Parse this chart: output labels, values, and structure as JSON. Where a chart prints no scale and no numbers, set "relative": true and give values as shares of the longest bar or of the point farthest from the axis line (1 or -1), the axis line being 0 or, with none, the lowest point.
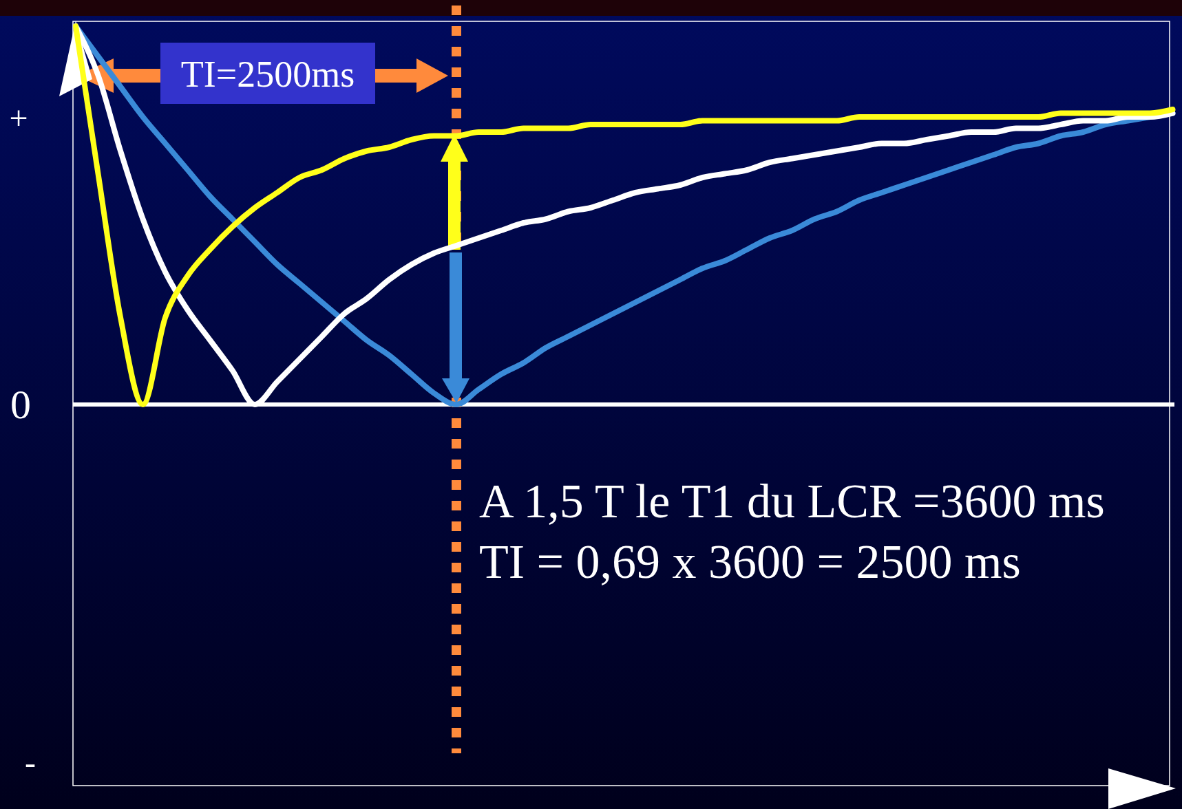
{
  "chart_data": {
    "type": "line",
    "relative": true,
    "legend": false,
    "marker": "none",
    "line_style": "solid",
    "categories": [
      null,
      null,
      null,
      null,
      null,
      null,
      null,
      null,
      null,
      null,
      null,
      null,
      null,
      null,
      null,
      null,
      null,
      null,
      null,
      null,
      null,
      null,
      null,
      null,
      null,
      null,
      null,
      null,
      null,
      null,
      null,
      null,
      null,
      null,
      null,
      null,
      null,
      null,
      null,
      null,
      null,
      null,
      null,
      null,
      null,
      null,
      null,
      null,
      null,
      null
    ],
    "series": [
      {
        "color": "#3a8ad8",
        "values": [
          1.0,
          0.92,
          0.84,
          0.76,
          0.69,
          0.62,
          0.55,
          0.49,
          0.43,
          0.37,
          0.32,
          0.27,
          0.22,
          0.17,
          0.13,
          0.08,
          0.03,
          0,
          0.04,
          0.08,
          0.11,
          0.15,
          0.18,
          0.21,
          0.24,
          0.27,
          0.3,
          0.33,
          0.36,
          0.38,
          0.41,
          0.44,
          0.46,
          0.49,
          0.51,
          0.54,
          0.56,
          0.58,
          0.6,
          0.62,
          0.64,
          0.66,
          0.68,
          0.69,
          0.71,
          0.72,
          0.74,
          0.75,
          0.76,
          0.77
        ]
      },
      {
        "color": "#ffffff",
        "values": [
          1.0,
          0.87,
          0.67,
          0.49,
          0.35,
          0.25,
          0.17,
          0.09,
          0,
          0.06,
          0.12,
          0.18,
          0.24,
          0.28,
          0.33,
          0.37,
          0.4,
          0.42,
          0.44,
          0.46,
          0.48,
          0.49,
          0.51,
          0.52,
          0.54,
          0.56,
          0.57,
          0.58,
          0.6,
          0.61,
          0.62,
          0.64,
          0.65,
          0.66,
          0.67,
          0.68,
          0.69,
          0.69,
          0.7,
          0.71,
          0.72,
          0.72,
          0.73,
          0.73,
          0.74,
          0.75,
          0.75,
          0.76,
          0.76,
          0.77
        ]
      },
      {
        "color": "#ffff1a",
        "values": [
          1.0,
          0.61,
          0.23,
          0,
          0.23,
          0.34,
          0.41,
          0.47,
          0.52,
          0.56,
          0.6,
          0.62,
          0.65,
          0.67,
          0.68,
          0.7,
          0.71,
          0.71,
          0.72,
          0.72,
          0.73,
          0.73,
          0.73,
          0.74,
          0.74,
          0.74,
          0.74,
          0.74,
          0.75,
          0.75,
          0.75,
          0.75,
          0.75,
          0.75,
          0.75,
          0.76,
          0.76,
          0.76,
          0.76,
          0.76,
          0.76,
          0.76,
          0.76,
          0.76,
          0.77,
          0.77,
          0.77,
          0.77,
          0.77,
          0.78
        ]
      }
    ],
    "annotations": [
      "+",
      "0",
      "-",
      "TI=2500ms",
      "A 1,5 T le T1 du LCR =3600 ms",
      "TI = 0,69 x 3600 = 2500 ms"
    ]
  }
}
